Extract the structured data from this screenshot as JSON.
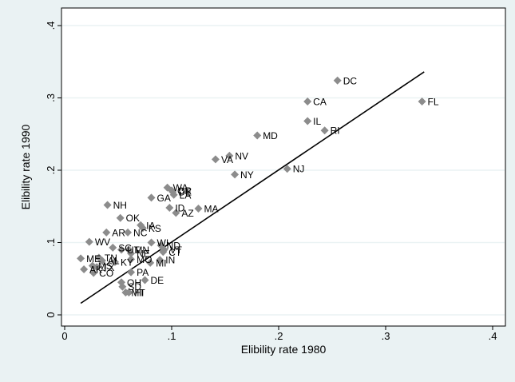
{
  "chart_data": {
    "type": "scatter",
    "xlabel": "Elibility rate 1980",
    "ylabel": "Elibility rate 1990",
    "xlim": [
      0,
      0.4
    ],
    "ylim": [
      0,
      0.4
    ],
    "x_ticks": [
      {
        "value": 0,
        "label": "0"
      },
      {
        "value": 0.1,
        "label": ".1"
      },
      {
        "value": 0.2,
        "label": ".2"
      },
      {
        "value": 0.3,
        "label": ".3"
      },
      {
        "value": 0.4,
        "label": ".4"
      }
    ],
    "y_ticks": [
      {
        "value": 0,
        "label": "0"
      },
      {
        "value": 0.1,
        "label": ".1"
      },
      {
        "value": 0.2,
        "label": ".2"
      },
      {
        "value": 0.3,
        "label": ".3"
      },
      {
        "value": 0.4,
        "label": ".4"
      }
    ],
    "grid": true,
    "marker": "diamond",
    "colors": {
      "background": "#eaf2f3",
      "plot_area": "#ffffff",
      "grid": "#eaf2f3",
      "marker": "#8c8c8c",
      "fit_line": "#000000",
      "text": "#000000"
    },
    "fit_line": {
      "x": [
        0.015,
        0.336
      ],
      "y": [
        0.016,
        0.336
      ]
    },
    "points": [
      {
        "label": "DC",
        "x": 0.255,
        "y": 0.324
      },
      {
        "label": "CA",
        "x": 0.227,
        "y": 0.295
      },
      {
        "label": "FL",
        "x": 0.334,
        "y": 0.295
      },
      {
        "label": "IL",
        "x": 0.227,
        "y": 0.268
      },
      {
        "label": "RI",
        "x": 0.243,
        "y": 0.255
      },
      {
        "label": "MD",
        "x": 0.18,
        "y": 0.248
      },
      {
        "label": "NV",
        "x": 0.154,
        "y": 0.22
      },
      {
        "label": "VA",
        "x": 0.141,
        "y": 0.215
      },
      {
        "label": "NJ",
        "x": 0.208,
        "y": 0.202
      },
      {
        "label": "NY",
        "x": 0.159,
        "y": 0.194
      },
      {
        "label": "WA",
        "x": 0.096,
        "y": 0.176
      },
      {
        "label": "OR",
        "x": 0.1,
        "y": 0.172
      },
      {
        "label": "DE",
        "x": 0.101,
        "y": 0.17
      },
      {
        "label": "LA",
        "x": 0.102,
        "y": 0.166
      },
      {
        "label": "GA",
        "x": 0.081,
        "y": 0.162
      },
      {
        "label": "NH",
        "x": 0.04,
        "y": 0.152
      },
      {
        "label": "ID",
        "x": 0.098,
        "y": 0.148
      },
      {
        "label": "MA",
        "x": 0.125,
        "y": 0.147
      },
      {
        "label": "AZ",
        "x": 0.104,
        "y": 0.141
      },
      {
        "label": "OK",
        "x": 0.052,
        "y": 0.134
      },
      {
        "label": "IA",
        "x": 0.071,
        "y": 0.124
      },
      {
        "label": "KS",
        "x": 0.073,
        "y": 0.12
      },
      {
        "label": "AR",
        "x": 0.039,
        "y": 0.114
      },
      {
        "label": "NC",
        "x": 0.059,
        "y": 0.114
      },
      {
        "label": "WV",
        "x": 0.023,
        "y": 0.101
      },
      {
        "label": "WI",
        "x": 0.081,
        "y": 0.1
      },
      {
        "label": "ND",
        "x": 0.09,
        "y": 0.096
      },
      {
        "label": "SC",
        "x": 0.045,
        "y": 0.093
      },
      {
        "label": "UT",
        "x": 0.053,
        "y": 0.09
      },
      {
        "label": "MN",
        "x": 0.06,
        "y": 0.09
      },
      {
        "label": "VT",
        "x": 0.093,
        "y": 0.09
      },
      {
        "label": "CT",
        "x": 0.092,
        "y": 0.087
      },
      {
        "label": "NE",
        "x": 0.062,
        "y": 0.085
      },
      {
        "label": "TN",
        "x": 0.032,
        "y": 0.079
      },
      {
        "label": "ME",
        "x": 0.015,
        "y": 0.078
      },
      {
        "label": "MO",
        "x": 0.062,
        "y": 0.077
      },
      {
        "label": "IN",
        "x": 0.089,
        "y": 0.076
      },
      {
        "label": "AL",
        "x": 0.035,
        "y": 0.075
      },
      {
        "label": "KY",
        "x": 0.047,
        "y": 0.073
      },
      {
        "label": "MI",
        "x": 0.08,
        "y": 0.072
      },
      {
        "label": "MS",
        "x": 0.026,
        "y": 0.068
      },
      {
        "label": "TX",
        "x": 0.03,
        "y": 0.066
      },
      {
        "label": "AK",
        "x": 0.018,
        "y": 0.063
      },
      {
        "label": "CO",
        "x": 0.027,
        "y": 0.058
      },
      {
        "label": "PA",
        "x": 0.062,
        "y": 0.059
      },
      {
        "label": "DE",
        "x": 0.075,
        "y": 0.048
      },
      {
        "label": "OH",
        "x": 0.053,
        "y": 0.045
      },
      {
        "label": "SD",
        "x": 0.054,
        "y": 0.039
      },
      {
        "label": "MT",
        "x": 0.057,
        "y": 0.031
      },
      {
        "label": "HI",
        "x": 0.06,
        "y": 0.031
      }
    ]
  }
}
